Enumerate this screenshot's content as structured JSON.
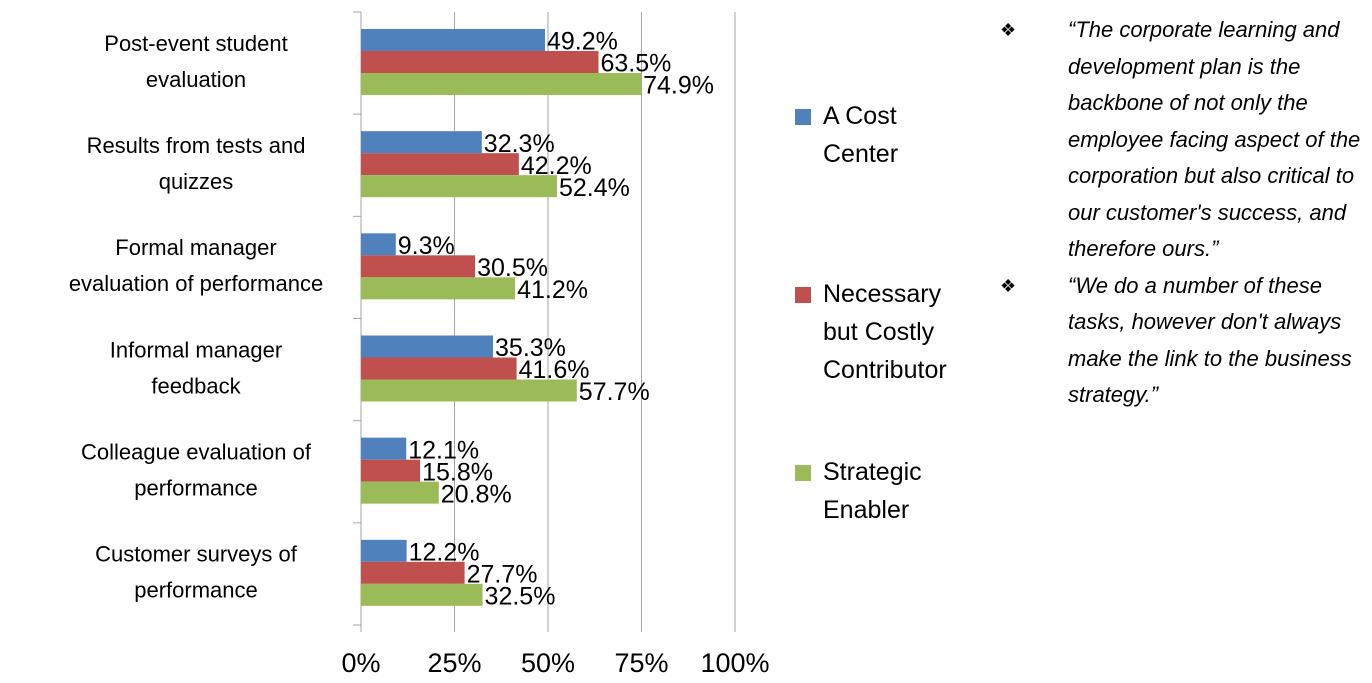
{
  "chart_data": {
    "type": "bar",
    "orientation": "horizontal",
    "categories": [
      [
        "Post-event student",
        "evaluation"
      ],
      [
        "Results from tests and",
        "quizzes"
      ],
      [
        "Formal manager",
        "evaluation of performance"
      ],
      [
        "Informal manager",
        "feedback"
      ],
      [
        "Colleague evaluation of",
        "performance"
      ],
      [
        "Customer surveys of",
        "performance"
      ]
    ],
    "series": [
      {
        "name": "A Cost Center",
        "color": "#4f81bd",
        "values": [
          49.2,
          32.3,
          9.3,
          35.3,
          12.1,
          12.2
        ],
        "value_labels": [
          "49.2%",
          "32.3%",
          "9.3%",
          "35.3%",
          "12.1%",
          "12.2%"
        ]
      },
      {
        "name": "Necessary but Costly Contributor",
        "color": "#c0504d",
        "values": [
          63.5,
          42.2,
          30.5,
          41.6,
          15.8,
          27.7
        ],
        "value_labels": [
          "63.5%",
          "42.2%",
          "30.5%",
          "41.6%",
          "15.8%",
          "27.7%"
        ]
      },
      {
        "name": "Strategic Enabler",
        "color": "#9bbb59",
        "values": [
          74.9,
          52.4,
          41.2,
          57.7,
          20.8,
          32.5
        ],
        "value_labels": [
          "74.9%",
          "52.4%",
          "41.2%",
          "57.7%",
          "20.8%",
          "32.5%"
        ]
      }
    ],
    "xlim": [
      0,
      100
    ],
    "xticks": [
      {
        "value": 0,
        "label": "0%"
      },
      {
        "value": 25,
        "label": "25%"
      },
      {
        "value": 50,
        "label": "50%"
      },
      {
        "value": 75,
        "label": "75%"
      },
      {
        "value": 100,
        "label": "100%"
      }
    ],
    "grid": true,
    "legend": "right"
  },
  "quotes": [
    "“The corporate learning and development plan is the backbone of not only the employee facing aspect of the corporation but also critical to our customer's success, and therefore ours.”",
    "“We do a number of these tasks, however don't always make the link to the business strategy.”"
  ]
}
